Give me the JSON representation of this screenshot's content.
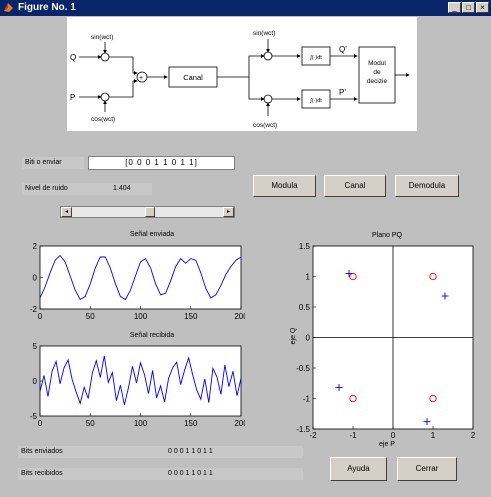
{
  "window": {
    "title": "Figure No. 1",
    "buttons": [
      "_",
      "□",
      "×"
    ]
  },
  "diagram": {
    "input_q": "Q",
    "input_p": "P",
    "osc_sin": "sin(wct)",
    "osc_cos": "cos(wct)",
    "sum": "+",
    "channel": "Canal",
    "demod_sin": "sin(wct)",
    "demod_cos": "cos(wct)",
    "int_top": "∫(·)dt",
    "int_bot": "∫(·)dt",
    "out_q": "Q'",
    "out_p": "P'",
    "decision": [
      "Modul",
      "de",
      "decizie"
    ]
  },
  "controls": {
    "bits_label": "Biti o enviar",
    "bits_value": "[0 0 0 1 1 0 1 1]",
    "noise_label": "Nivel de ruido",
    "noise_value": "1.404",
    "slider_level": 0.52,
    "modula_button": "Modula",
    "canal_button": "Canal",
    "demodula_button": "Demodula",
    "ayuda_button": "Ayuda",
    "cerrar_button": "Cerrar"
  },
  "footer": {
    "sent_label": "Bits enviados",
    "sent_value": "0 0 0 1 1 0 1 1",
    "received_label": "Bits recibidos",
    "received_value": "0 0 0 1 1 0 1 1"
  },
  "chart_data": [
    {
      "type": "line",
      "title": "Señal enviada",
      "xlim": [
        0,
        200
      ],
      "ylim": [
        -2,
        2
      ],
      "xticks": [
        0,
        50,
        100,
        150,
        200
      ],
      "yticks": [
        -2,
        0,
        2
      ],
      "x": [
        0,
        5,
        10,
        15,
        20,
        25,
        30,
        35,
        40,
        45,
        50,
        55,
        60,
        65,
        70,
        75,
        80,
        85,
        90,
        95,
        100,
        105,
        110,
        115,
        120,
        125,
        130,
        135,
        140,
        145,
        150,
        155,
        160,
        165,
        170,
        175,
        180,
        185,
        190,
        195,
        200
      ],
      "values": [
        -1.3,
        -0.6,
        0.3,
        1.1,
        1.4,
        1.0,
        0.1,
        -0.8,
        -1.4,
        -1.2,
        -0.4,
        0.6,
        1.3,
        1.3,
        0.6,
        -0.4,
        -1.2,
        -1.4,
        -0.8,
        0.1,
        1.0,
        1.2,
        0.6,
        -0.4,
        -1.1,
        -1.0,
        -0.2,
        0.7,
        1.2,
        0.9,
        1.2,
        1.1,
        0.3,
        -0.7,
        -1.3,
        -1.1,
        -0.5,
        0.2,
        0.7,
        1.1,
        1.3
      ]
    },
    {
      "type": "line",
      "title": "Señal recibida",
      "xlim": [
        0,
        200
      ],
      "ylim": [
        -5,
        5
      ],
      "xticks": [
        0,
        50,
        100,
        150,
        200
      ],
      "yticks": [
        -5,
        0,
        5
      ],
      "x": [
        0,
        4,
        8,
        12,
        16,
        20,
        24,
        28,
        32,
        36,
        40,
        44,
        48,
        52,
        56,
        60,
        64,
        68,
        72,
        76,
        80,
        84,
        88,
        92,
        96,
        100,
        104,
        108,
        112,
        116,
        120,
        124,
        128,
        132,
        136,
        140,
        144,
        148,
        152,
        156,
        160,
        164,
        168,
        172,
        176,
        180,
        184,
        188,
        192,
        196,
        200
      ],
      "values": [
        -1.5,
        0.8,
        -2.2,
        1.4,
        2.8,
        -0.4,
        1.9,
        3.0,
        0.2,
        -1.6,
        -3.2,
        -0.9,
        -2.5,
        1.1,
        2.9,
        0.5,
        3.6,
        -0.2,
        1.2,
        -2.8,
        -0.6,
        -3.4,
        -1.0,
        2.1,
        -0.3,
        2.6,
        0.9,
        -1.8,
        1.5,
        -2.4,
        -0.7,
        -3.0,
        0.4,
        1.9,
        2.7,
        -0.5,
        1.6,
        3.3,
        0.8,
        -1.3,
        -2.6,
        0.3,
        -3.1,
        1.8,
        0.6,
        -1.9,
        2.3,
        -0.8,
        1.4,
        -2.1,
        0.4
      ]
    },
    {
      "type": "scatter",
      "title": "Plano PQ",
      "xlabel": "eje P",
      "ylabel": "eje Q",
      "xlim": [
        -2,
        2
      ],
      "ylim": [
        -1.5,
        1.5
      ],
      "xticks": [
        -2,
        -1,
        0,
        1,
        2
      ],
      "yticks": [
        -1.5,
        -1,
        -0.5,
        0,
        0.5,
        1,
        1.5
      ],
      "series": [
        {
          "marker": "circle",
          "color": "#ff0000",
          "points": [
            [
              -1,
              1
            ],
            [
              1,
              1
            ],
            [
              -1,
              -1
            ],
            [
              1,
              -1
            ]
          ]
        },
        {
          "marker": "plus",
          "color": "#0000ff",
          "points": [
            [
              -1.1,
              1.05
            ],
            [
              1.3,
              0.68
            ],
            [
              -1.35,
              -0.82
            ],
            [
              0.85,
              -1.38
            ]
          ]
        }
      ]
    }
  ]
}
